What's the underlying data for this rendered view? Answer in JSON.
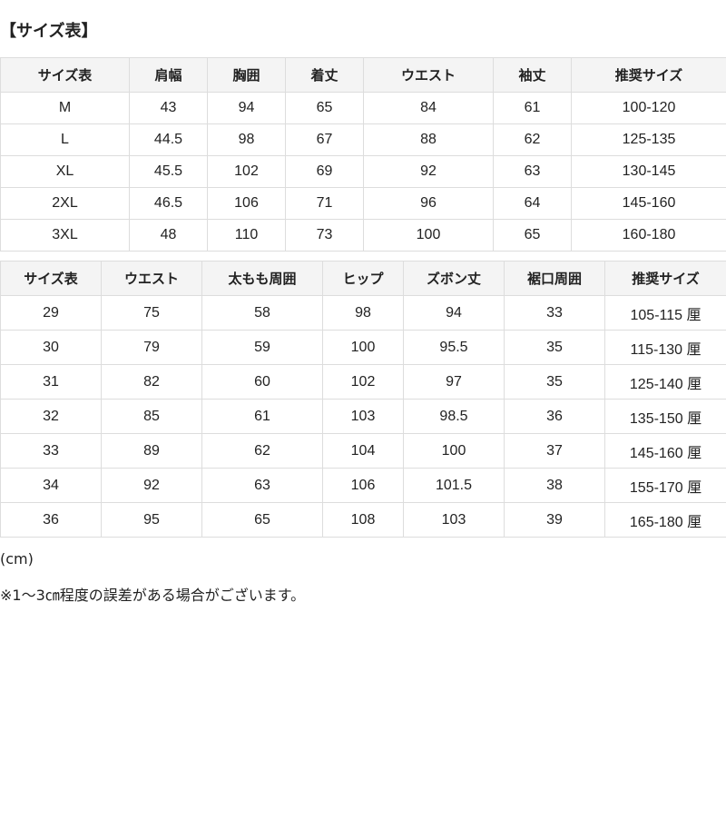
{
  "title": "【サイズ表】",
  "table1": {
    "headers": [
      "サイズ表",
      "肩幅",
      "胸囲",
      "着丈",
      "ウエスト",
      "袖丈",
      "推奨サイズ"
    ],
    "rows": [
      [
        "M",
        "43",
        "94",
        "65",
        "84",
        "61",
        "100-120"
      ],
      [
        "L",
        "44.5",
        "98",
        "67",
        "88",
        "62",
        "125-135"
      ],
      [
        "XL",
        "45.5",
        "102",
        "69",
        "92",
        "63",
        "130-145"
      ],
      [
        "2XL",
        "46.5",
        "106",
        "71",
        "96",
        "64",
        "145-160"
      ],
      [
        "3XL",
        "48",
        "110",
        "73",
        "100",
        "65",
        "160-180"
      ]
    ]
  },
  "table2": {
    "headers": [
      "サイズ表",
      "ウエスト",
      "太もも周囲",
      "ヒップ",
      "ズボン丈",
      "裾口周囲",
      "推奨サイズ"
    ],
    "rows": [
      [
        "29",
        "75",
        "58",
        "98",
        "94",
        "33",
        "105-115 厘"
      ],
      [
        "30",
        "79",
        "59",
        "100",
        "95.5",
        "35",
        "115-130 厘"
      ],
      [
        "31",
        "82",
        "60",
        "102",
        "97",
        "35",
        "125-140 厘"
      ],
      [
        "32",
        "85",
        "61",
        "103",
        "98.5",
        "36",
        "135-150 厘"
      ],
      [
        "33",
        "89",
        "62",
        "104",
        "100",
        "37",
        "145-160 厘"
      ],
      [
        "34",
        "92",
        "63",
        "106",
        "101.5",
        "38",
        "155-170 厘"
      ],
      [
        "36",
        "95",
        "65",
        "108",
        "103",
        "39",
        "165-180 厘"
      ]
    ]
  },
  "unit": "(cm)",
  "footnote": "※1～3㎝程度の誤差がある場合がございます。"
}
